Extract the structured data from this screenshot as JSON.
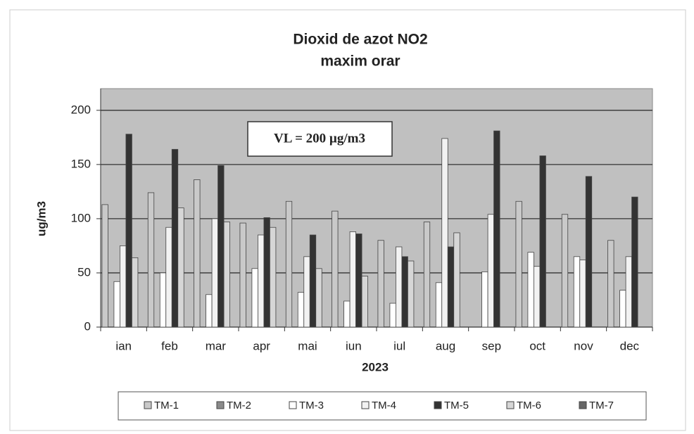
{
  "chart_data": {
    "type": "bar",
    "title": "Dioxid de azot NO2",
    "subtitle": "maxim orar",
    "ylabel": "ug/m3",
    "xlabel": "2023",
    "annotation": "VL = 200 µg/m3",
    "categories": [
      "ian",
      "feb",
      "mar",
      "apr",
      "mai",
      "iun",
      "iul",
      "aug",
      "sep",
      "oct",
      "nov",
      "dec"
    ],
    "series": [
      {
        "name": "TM-1",
        "color": "#c9c9c9",
        "values": [
          113,
          124,
          136,
          96,
          116,
          107,
          80,
          97,
          null,
          116,
          104,
          80
        ]
      },
      {
        "name": "TM-2",
        "color": "#8a8a8a",
        "values": [
          null,
          null,
          null,
          null,
          null,
          null,
          null,
          null,
          null,
          null,
          null,
          null
        ]
      },
      {
        "name": "TM-3",
        "color": "#ffffff",
        "values": [
          42,
          50,
          30,
          54,
          32,
          24,
          22,
          41,
          51,
          69,
          65,
          34
        ]
      },
      {
        "name": "TM-4",
        "color": "#f2f2f2",
        "values": [
          75,
          92,
          100,
          85,
          65,
          88,
          74,
          174,
          104,
          56,
          62,
          65
        ]
      },
      {
        "name": "TM-5",
        "color": "#333333",
        "values": [
          178,
          164,
          149,
          101,
          85,
          86,
          65,
          74,
          181,
          158,
          139,
          120
        ]
      },
      {
        "name": "TM-6",
        "color": "#d6d6d6",
        "values": [
          64,
          110,
          97,
          92,
          54,
          47,
          61,
          87,
          null,
          null,
          null,
          null
        ]
      },
      {
        "name": "TM-7",
        "color": "#666666",
        "values": [
          null,
          null,
          null,
          null,
          null,
          null,
          null,
          null,
          null,
          null,
          null,
          null
        ]
      }
    ],
    "ylim": [
      0,
      220
    ],
    "yticks": [
      0,
      50,
      100,
      150,
      200
    ],
    "grid": true,
    "background": "#c0c0c0"
  }
}
